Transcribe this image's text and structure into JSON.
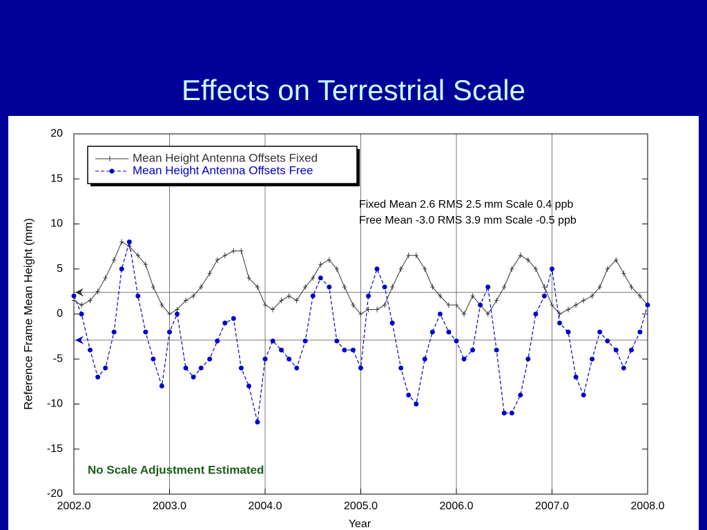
{
  "chart_data": {
    "type": "line",
    "title": "Effects on Terrestrial Scale",
    "xlabel": "Year",
    "ylabel": "Reference Frame Mean Height (mm)",
    "annotations": [
      "Fixed Mean  2.6 RMS 2.5 mm  Scale  0.4 ppb",
      "Free  Mean -3.0 RMS 3.9 mm  Scale -0.5 ppb",
      "No Scale Adjustment Estimated"
    ],
    "xlim": [
      2002,
      2008
    ],
    "ylim": [
      -20,
      20
    ],
    "xticks": [
      {
        "value": 2002,
        "label": "2002.0"
      },
      {
        "value": 2003,
        "label": "2003.0"
      },
      {
        "value": 2004,
        "label": "2004.0"
      },
      {
        "value": 2005,
        "label": "2005.0"
      },
      {
        "value": 2006,
        "label": "2006.0"
      },
      {
        "value": 2007,
        "label": "2007.0"
      },
      {
        "value": 2008,
        "label": "2008.0"
      }
    ],
    "yticks": [
      -20,
      -15,
      -10,
      -5,
      0,
      5,
      10,
      15,
      20
    ],
    "reference_lines": [
      2.4,
      -2.9
    ],
    "legend": "upper left",
    "x": [
      2002.0,
      2002.08,
      2002.17,
      2002.25,
      2002.33,
      2002.42,
      2002.5,
      2002.58,
      2002.67,
      2002.75,
      2002.83,
      2002.92,
      2003.0,
      2003.08,
      2003.17,
      2003.25,
      2003.33,
      2003.42,
      2003.5,
      2003.58,
      2003.67,
      2003.75,
      2003.83,
      2003.92,
      2004.0,
      2004.08,
      2004.17,
      2004.25,
      2004.33,
      2004.42,
      2004.5,
      2004.58,
      2004.67,
      2004.75,
      2004.83,
      2004.92,
      2005.0,
      2005.08,
      2005.17,
      2005.25,
      2005.33,
      2005.42,
      2005.5,
      2005.58,
      2005.67,
      2005.75,
      2005.83,
      2005.92,
      2006.0,
      2006.08,
      2006.17,
      2006.25,
      2006.33,
      2006.42,
      2006.5,
      2006.58,
      2006.67,
      2006.75,
      2006.83,
      2006.92,
      2007.0,
      2007.08,
      2007.17,
      2007.25,
      2007.33,
      2007.42,
      2007.5,
      2007.58,
      2007.67,
      2007.75,
      2007.83,
      2007.92,
      2008.0
    ],
    "series": [
      {
        "name": "Mean Height Antenna Offsets Fixed",
        "color": "#333333",
        "values": [
          1.5,
          1,
          1.5,
          2.5,
          4,
          6,
          8,
          7.5,
          6.5,
          5.5,
          3,
          1,
          0,
          0.5,
          1.5,
          2,
          3,
          4.5,
          6,
          6.5,
          7,
          7,
          4,
          3,
          1,
          0.5,
          1.5,
          2,
          1.5,
          3,
          4,
          5.5,
          6,
          5,
          3,
          1,
          0,
          0.5,
          0.5,
          1,
          3,
          5,
          6.5,
          6.5,
          5,
          3,
          2,
          1,
          1,
          0,
          2,
          1,
          0,
          1.5,
          3,
          5,
          6.5,
          6,
          5,
          3,
          1,
          0,
          0.5,
          1,
          1.5,
          2,
          3,
          5,
          6,
          4.5,
          3,
          2,
          1
        ]
      },
      {
        "name": "Mean Height Antenna Offsets Free",
        "color": "#0000cc",
        "values": [
          2,
          0,
          -4,
          -7,
          -6,
          -2,
          5,
          8,
          2,
          -2,
          -5,
          -8,
          -2,
          0,
          -6,
          -7,
          -6,
          -5,
          -3,
          -1,
          -0.5,
          -6,
          -8,
          -12,
          -5,
          -3,
          -4,
          -5,
          -6,
          -3,
          2,
          4,
          3,
          -3,
          -4,
          -4,
          -6,
          2,
          5,
          3,
          -1,
          -6,
          -9,
          -10,
          -5,
          -2,
          0,
          -2,
          -3,
          -5,
          -4,
          1,
          3,
          -4,
          -11,
          -11,
          -9,
          -5,
          0,
          2,
          5,
          -1,
          -2,
          -7,
          -9,
          -5,
          -2,
          -3,
          -4,
          -6,
          -4,
          -2,
          1
        ]
      }
    ]
  }
}
